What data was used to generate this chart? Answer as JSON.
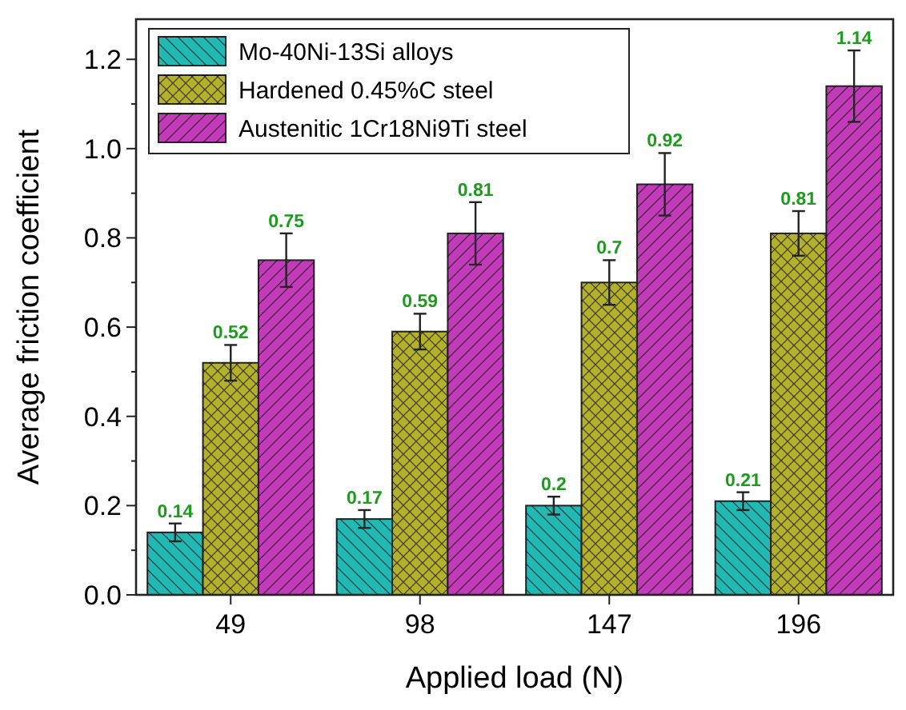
{
  "chart_data": {
    "type": "bar",
    "xlabel": "Applied load (N)",
    "ylabel": "Average friction coefficient",
    "categories": [
      "49",
      "98",
      "147",
      "196"
    ],
    "series": [
      {
        "name": "Mo-40Ni-13Si alloys",
        "color": "#22b8b4",
        "values": [
          0.14,
          0.17,
          0.2,
          0.21
        ],
        "errors": [
          0.02,
          0.02,
          0.02,
          0.02
        ]
      },
      {
        "name": "Hardened 0.45%C steel",
        "color": "#b3b02c",
        "values": [
          0.52,
          0.59,
          0.7,
          0.81
        ],
        "errors": [
          0.04,
          0.04,
          0.05,
          0.05
        ]
      },
      {
        "name": "Austenitic 1Cr18Ni9Ti steel",
        "color": "#c23bb8",
        "values": [
          0.75,
          0.81,
          0.92,
          1.14
        ],
        "errors": [
          0.06,
          0.07,
          0.07,
          0.08
        ]
      }
    ],
    "ylim": [
      0,
      1.29
    ],
    "yticks": [
      {
        "value": 0,
        "label": "0.0"
      },
      0.2,
      0.4,
      0.6,
      0.8,
      {
        "value": 1,
        "label": "1.0"
      },
      1.2
    ],
    "data_labels": true,
    "legend": "top left",
    "grid": false
  }
}
